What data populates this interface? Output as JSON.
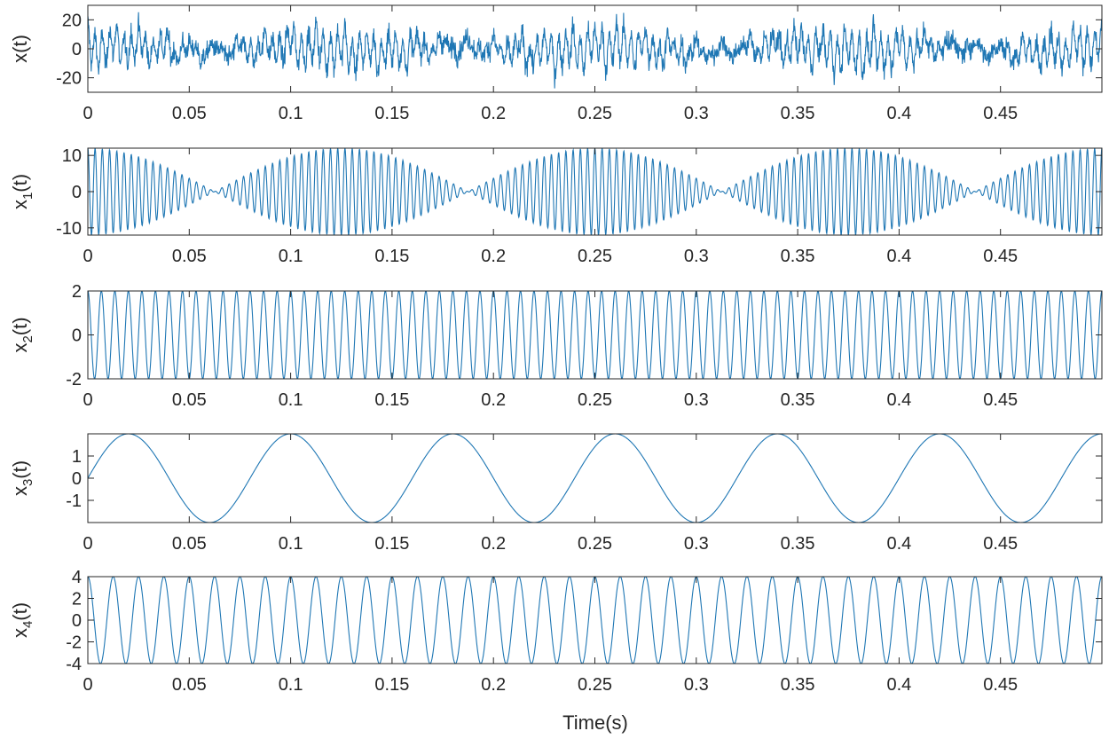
{
  "chart_data": {
    "type": "line",
    "layout": "stacked subplots",
    "x_axis_label": "Time(s)",
    "line_color": "#1f77b4",
    "xlim": [
      0,
      0.5
    ],
    "x_ticks": [
      0,
      0.05,
      0.1,
      0.15,
      0.2,
      0.25,
      0.3,
      0.35,
      0.4,
      0.45
    ],
    "x_tick_labels": [
      "0",
      "0.05",
      "0.1",
      "0.15",
      "0.2",
      "0.25",
      "0.3",
      "0.35",
      "0.4",
      "0.45"
    ],
    "panels": [
      {
        "id": "x",
        "ylabel": "x(t)",
        "ylabel_main": "x",
        "ylabel_sub": "",
        "ylabel_tail": "(t)",
        "ylim": [
          -30,
          30
        ],
        "y_ticks": [
          -20,
          0,
          20
        ],
        "y_tick_labels": [
          "-20",
          "0",
          "20"
        ],
        "description": "sum of x1 + x2 + x3 + x4 plus noise",
        "signal": {
          "kind": "sum_noise",
          "noise_amp": 9
        }
      },
      {
        "id": "x1",
        "ylabel": "x1(t)",
        "ylabel_main": "x",
        "ylabel_sub": "1",
        "ylabel_tail": "(t)",
        "ylim": [
          -12,
          12
        ],
        "y_ticks": [
          -10,
          0,
          10
        ],
        "y_tick_labels": [
          "-10",
          "0",
          "10"
        ],
        "description": "amplitude-modulated carrier",
        "signal": {
          "kind": "am",
          "carrier_hz": 280,
          "mod_hz": 4,
          "mod_depth": 12
        }
      },
      {
        "id": "x2",
        "ylabel": "x2(t)",
        "ylabel_main": "x",
        "ylabel_sub": "2",
        "ylabel_tail": "(t)",
        "ylim": [
          -2,
          2
        ],
        "y_ticks": [
          -2,
          0,
          2
        ],
        "y_tick_labels": [
          "-2",
          "0",
          "2"
        ],
        "signal": {
          "kind": "sine",
          "amplitude": 2,
          "freq_hz": 150,
          "phase": 1.5708
        }
      },
      {
        "id": "x3",
        "ylabel": "x3(t)",
        "ylabel_main": "x",
        "ylabel_sub": "3",
        "ylabel_tail": "(t)",
        "ylim": [
          -2,
          2
        ],
        "y_ticks": [
          -1,
          0,
          1
        ],
        "y_tick_labels": [
          "-1",
          "0",
          "1"
        ],
        "signal": {
          "kind": "sine",
          "amplitude": 2,
          "freq_hz": 12.5,
          "phase": 0
        }
      },
      {
        "id": "x4",
        "ylabel": "x4(t)",
        "ylabel_main": "x",
        "ylabel_sub": "4",
        "ylabel_tail": "(t)",
        "ylim": [
          -4,
          4
        ],
        "y_ticks": [
          -4,
          -2,
          0,
          2,
          4
        ],
        "y_tick_labels": [
          "-4",
          "-2",
          "0",
          "2",
          "4"
        ],
        "signal": {
          "kind": "sine",
          "amplitude": 4,
          "freq_hz": 80,
          "phase": 1.5708
        }
      }
    ]
  }
}
